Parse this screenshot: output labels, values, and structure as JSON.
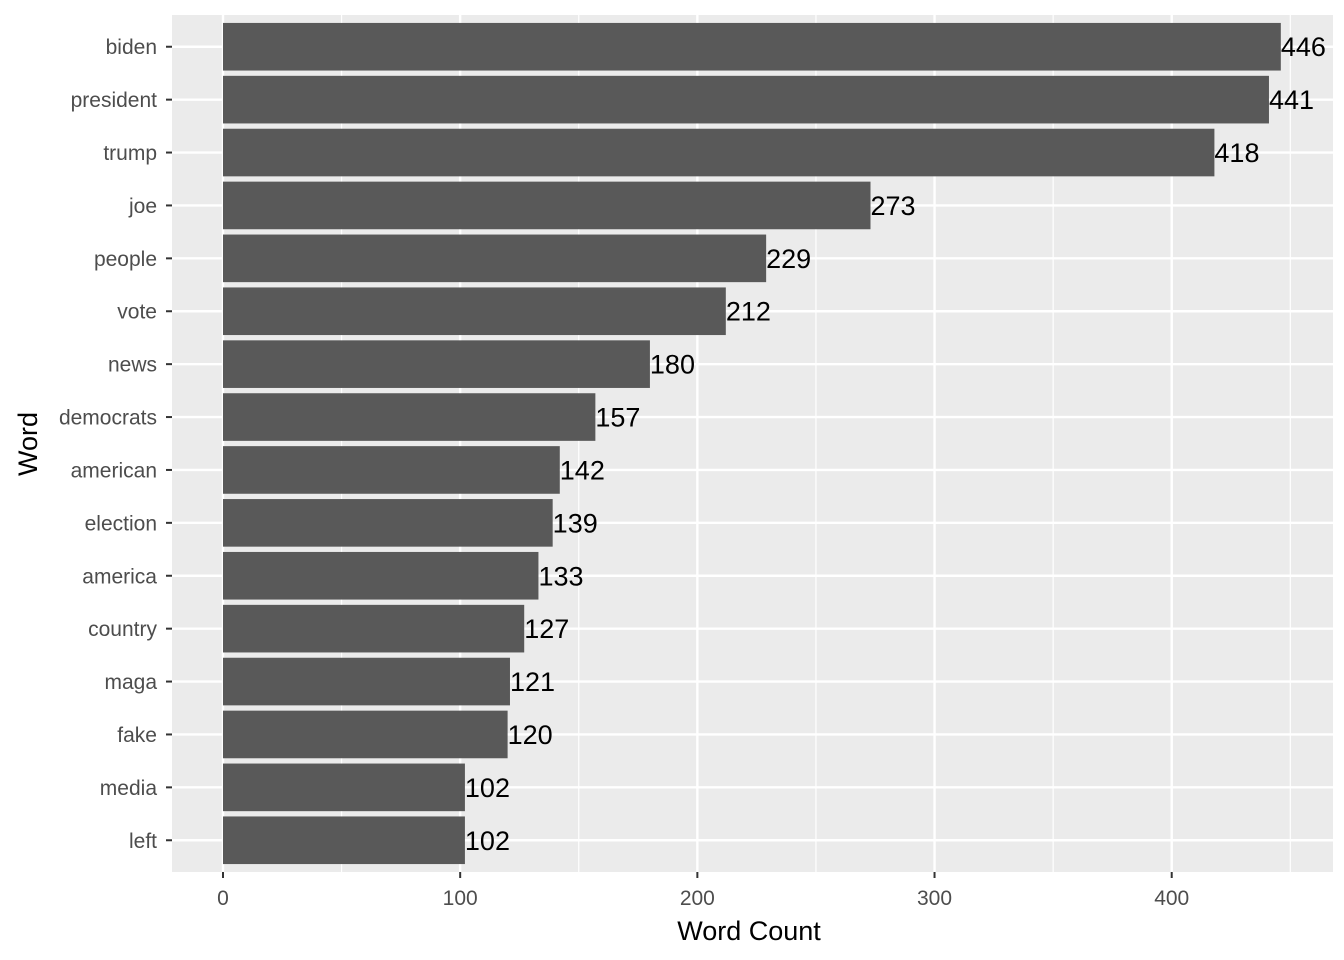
{
  "chart_data": {
    "type": "bar",
    "orientation": "horizontal",
    "categories": [
      "biden",
      "president",
      "trump",
      "joe",
      "people",
      "vote",
      "news",
      "democrats",
      "american",
      "election",
      "america",
      "country",
      "maga",
      "fake",
      "media",
      "left"
    ],
    "values": [
      446,
      441,
      418,
      273,
      229,
      212,
      180,
      157,
      142,
      139,
      133,
      127,
      121,
      120,
      102,
      102
    ],
    "xlabel": "Word Count",
    "ylabel": "Word",
    "xlim": [
      -21.5,
      468
    ],
    "x_ticks": [
      0,
      100,
      200,
      300,
      400
    ],
    "x_tick_labels": [
      "0",
      "100",
      "200",
      "300",
      "400"
    ],
    "grid": true,
    "colors": {
      "panel": "#ebebeb",
      "grid": "#ffffff",
      "bar": "#595959",
      "axis_text": "#4d4d4d",
      "label_text": "#000000"
    }
  }
}
